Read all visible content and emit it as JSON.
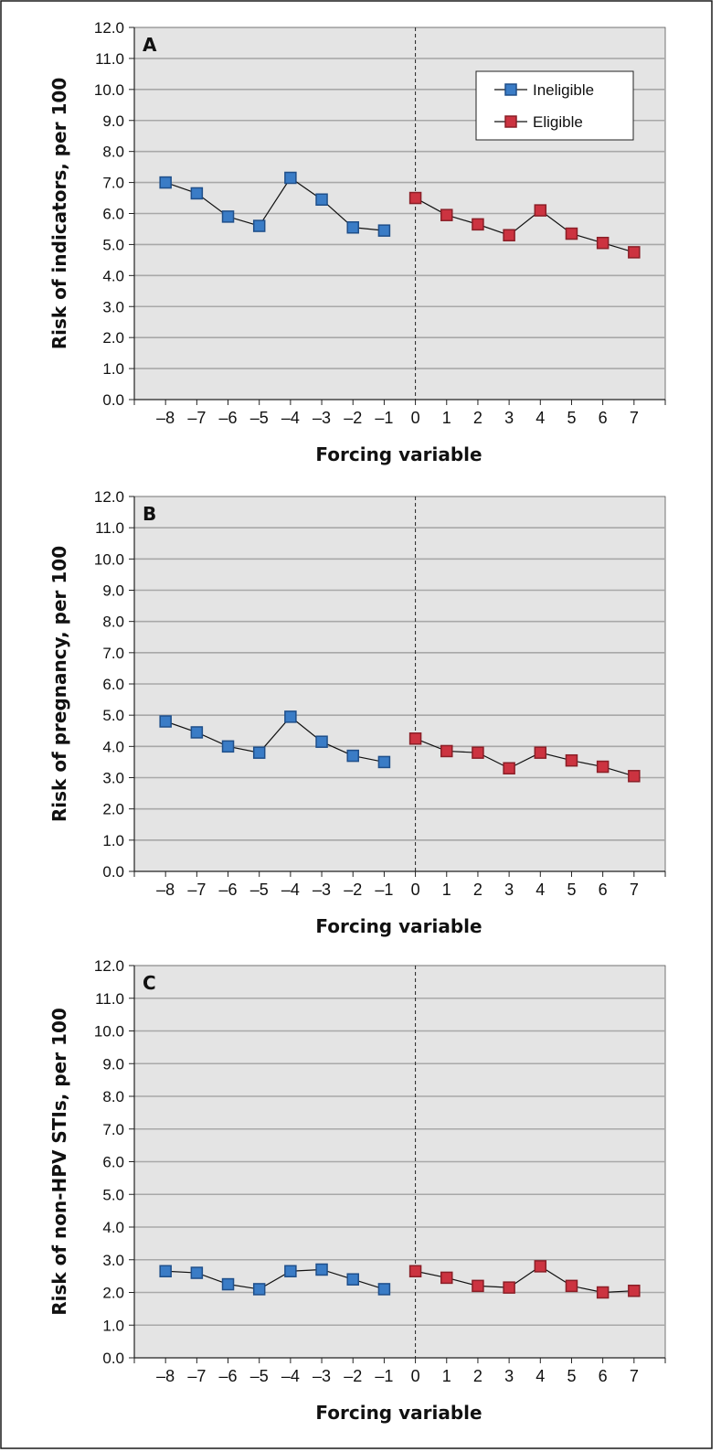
{
  "legend": {
    "ineligible": "Ineligible",
    "eligible": "Eligible"
  },
  "colors": {
    "ineligible_fill": "#3a7cc6",
    "ineligible_stroke": "#1f4f8a",
    "eligible_fill": "#cc3340",
    "eligible_stroke": "#8a1f27",
    "plot_background": "#e4e4e4"
  },
  "chart_data": [
    {
      "type": "line",
      "panel": "A",
      "xlabel": "Forcing variable",
      "ylabel": "Risk of indicators, per 100",
      "ylim": [
        0,
        12
      ],
      "yticks": [
        "0.0",
        "1.0",
        "2.0",
        "3.0",
        "4.0",
        "5.0",
        "6.0",
        "7.0",
        "8.0",
        "9.0",
        "10.0",
        "11.0",
        "12.0"
      ],
      "xticks": [
        "–8",
        "–7",
        "–6",
        "–5",
        "–4",
        "–3",
        "–2",
        "–1",
        "0",
        "1",
        "2",
        "3",
        "4",
        "5",
        "6",
        "7"
      ],
      "cutoff_x": 0,
      "grid": true,
      "legend_position": "top-right",
      "series": [
        {
          "name": "Ineligible",
          "x": [
            -8,
            -7,
            -6,
            -5,
            -4,
            -3,
            -2,
            -1
          ],
          "values": [
            7.0,
            6.65,
            5.9,
            5.6,
            7.15,
            6.45,
            5.55,
            5.45
          ]
        },
        {
          "name": "Eligible",
          "x": [
            0,
            1,
            2,
            3,
            4,
            5,
            6,
            7
          ],
          "values": [
            6.5,
            5.95,
            5.65,
            5.3,
            6.1,
            5.35,
            5.05,
            4.75
          ]
        }
      ]
    },
    {
      "type": "line",
      "panel": "B",
      "xlabel": "Forcing variable",
      "ylabel": "Risk of pregnancy, per 100",
      "ylim": [
        0,
        12
      ],
      "yticks": [
        "0.0",
        "1.0",
        "2.0",
        "3.0",
        "4.0",
        "5.0",
        "6.0",
        "7.0",
        "8.0",
        "9.0",
        "10.0",
        "11.0",
        "12.0"
      ],
      "xticks": [
        "–8",
        "–7",
        "–6",
        "–5",
        "–4",
        "–3",
        "–2",
        "–1",
        "0",
        "1",
        "2",
        "3",
        "4",
        "5",
        "6",
        "7"
      ],
      "cutoff_x": 0,
      "grid": true,
      "series": [
        {
          "name": "Ineligible",
          "x": [
            -8,
            -7,
            -6,
            -5,
            -4,
            -3,
            -2,
            -1
          ],
          "values": [
            4.8,
            4.45,
            4.0,
            3.8,
            4.95,
            4.15,
            3.7,
            3.5
          ]
        },
        {
          "name": "Eligible",
          "x": [
            0,
            1,
            2,
            3,
            4,
            5,
            6,
            7
          ],
          "values": [
            4.25,
            3.85,
            3.8,
            3.3,
            3.8,
            3.55,
            3.35,
            3.05
          ]
        }
      ]
    },
    {
      "type": "line",
      "panel": "C",
      "xlabel": "Forcing variable",
      "ylabel": "Risk of non-HPV STIs, per 100",
      "ylim": [
        0,
        12
      ],
      "yticks": [
        "0.0",
        "1.0",
        "2.0",
        "3.0",
        "4.0",
        "5.0",
        "6.0",
        "7.0",
        "8.0",
        "9.0",
        "10.0",
        "11.0",
        "12.0"
      ],
      "xticks": [
        "–8",
        "–7",
        "–6",
        "–5",
        "–4",
        "–3",
        "–2",
        "–1",
        "0",
        "1",
        "2",
        "3",
        "4",
        "5",
        "6",
        "7"
      ],
      "cutoff_x": 0,
      "grid": true,
      "series": [
        {
          "name": "Ineligible",
          "x": [
            -8,
            -7,
            -6,
            -5,
            -4,
            -3,
            -2,
            -1
          ],
          "values": [
            2.65,
            2.6,
            2.25,
            2.1,
            2.65,
            2.7,
            2.4,
            2.1
          ]
        },
        {
          "name": "Eligible",
          "x": [
            0,
            1,
            2,
            3,
            4,
            5,
            6,
            7
          ],
          "values": [
            2.65,
            2.45,
            2.2,
            2.15,
            2.8,
            2.2,
            2.0,
            2.05
          ]
        }
      ]
    }
  ]
}
